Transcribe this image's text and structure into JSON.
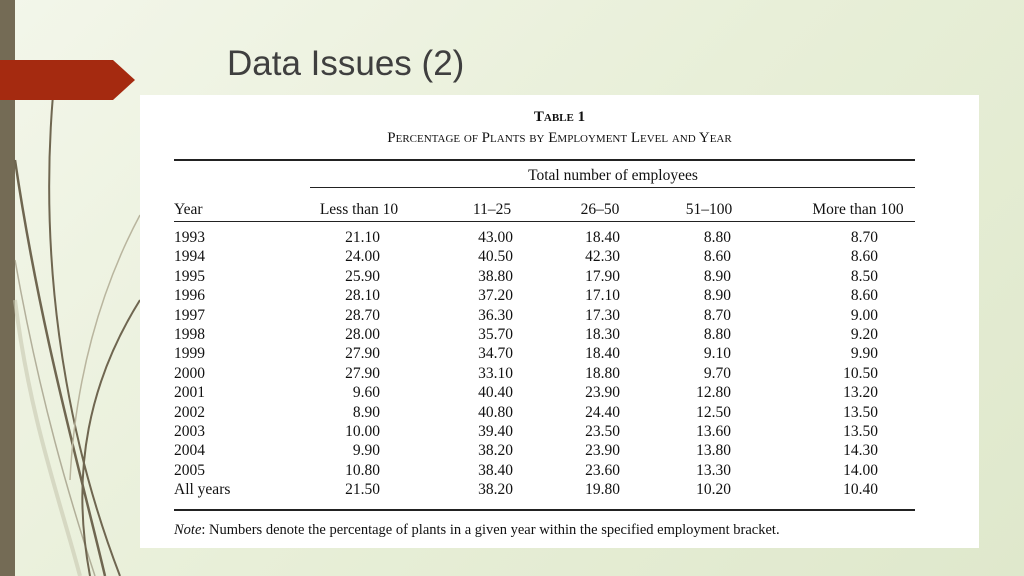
{
  "slide": {
    "title": "Data Issues (2)",
    "accent_color": "#a52a10",
    "bar_color": "#746b55"
  },
  "table": {
    "label": "Table 1",
    "caption": "Percentage of Plants by Employment Level and Year",
    "spanner": "Total number of employees",
    "columns": [
      "Year",
      "Less than 10",
      "11–25",
      "26–50",
      "51–100",
      "More than 100"
    ],
    "rows": [
      [
        "1993",
        "21.10",
        "43.00",
        "18.40",
        "8.80",
        "8.70"
      ],
      [
        "1994",
        "24.00",
        "40.50",
        "42.30",
        "8.60",
        "8.60"
      ],
      [
        "1995",
        "25.90",
        "38.80",
        "17.90",
        "8.90",
        "8.50"
      ],
      [
        "1996",
        "28.10",
        "37.20",
        "17.10",
        "8.90",
        "8.60"
      ],
      [
        "1997",
        "28.70",
        "36.30",
        "17.30",
        "8.70",
        "9.00"
      ],
      [
        "1998",
        "28.00",
        "35.70",
        "18.30",
        "8.80",
        "9.20"
      ],
      [
        "1999",
        "27.90",
        "34.70",
        "18.40",
        "9.10",
        "9.90"
      ],
      [
        "2000",
        "27.90",
        "33.10",
        "18.80",
        "9.70",
        "10.50"
      ],
      [
        "2001",
        "9.60",
        "40.40",
        "23.90",
        "12.80",
        "13.20"
      ],
      [
        "2002",
        "8.90",
        "40.80",
        "24.40",
        "12.50",
        "13.50"
      ],
      [
        "2003",
        "10.00",
        "39.40",
        "23.50",
        "13.60",
        "13.50"
      ],
      [
        "2004",
        "9.90",
        "38.20",
        "23.90",
        "13.80",
        "14.30"
      ],
      [
        "2005",
        "10.80",
        "38.40",
        "23.60",
        "13.30",
        "14.00"
      ],
      [
        "All years",
        "21.50",
        "38.20",
        "19.80",
        "10.20",
        "10.40"
      ]
    ],
    "note_label": "Note",
    "note_text": ": Numbers denote the percentage of plants in a given year within the specified employment bracket."
  }
}
